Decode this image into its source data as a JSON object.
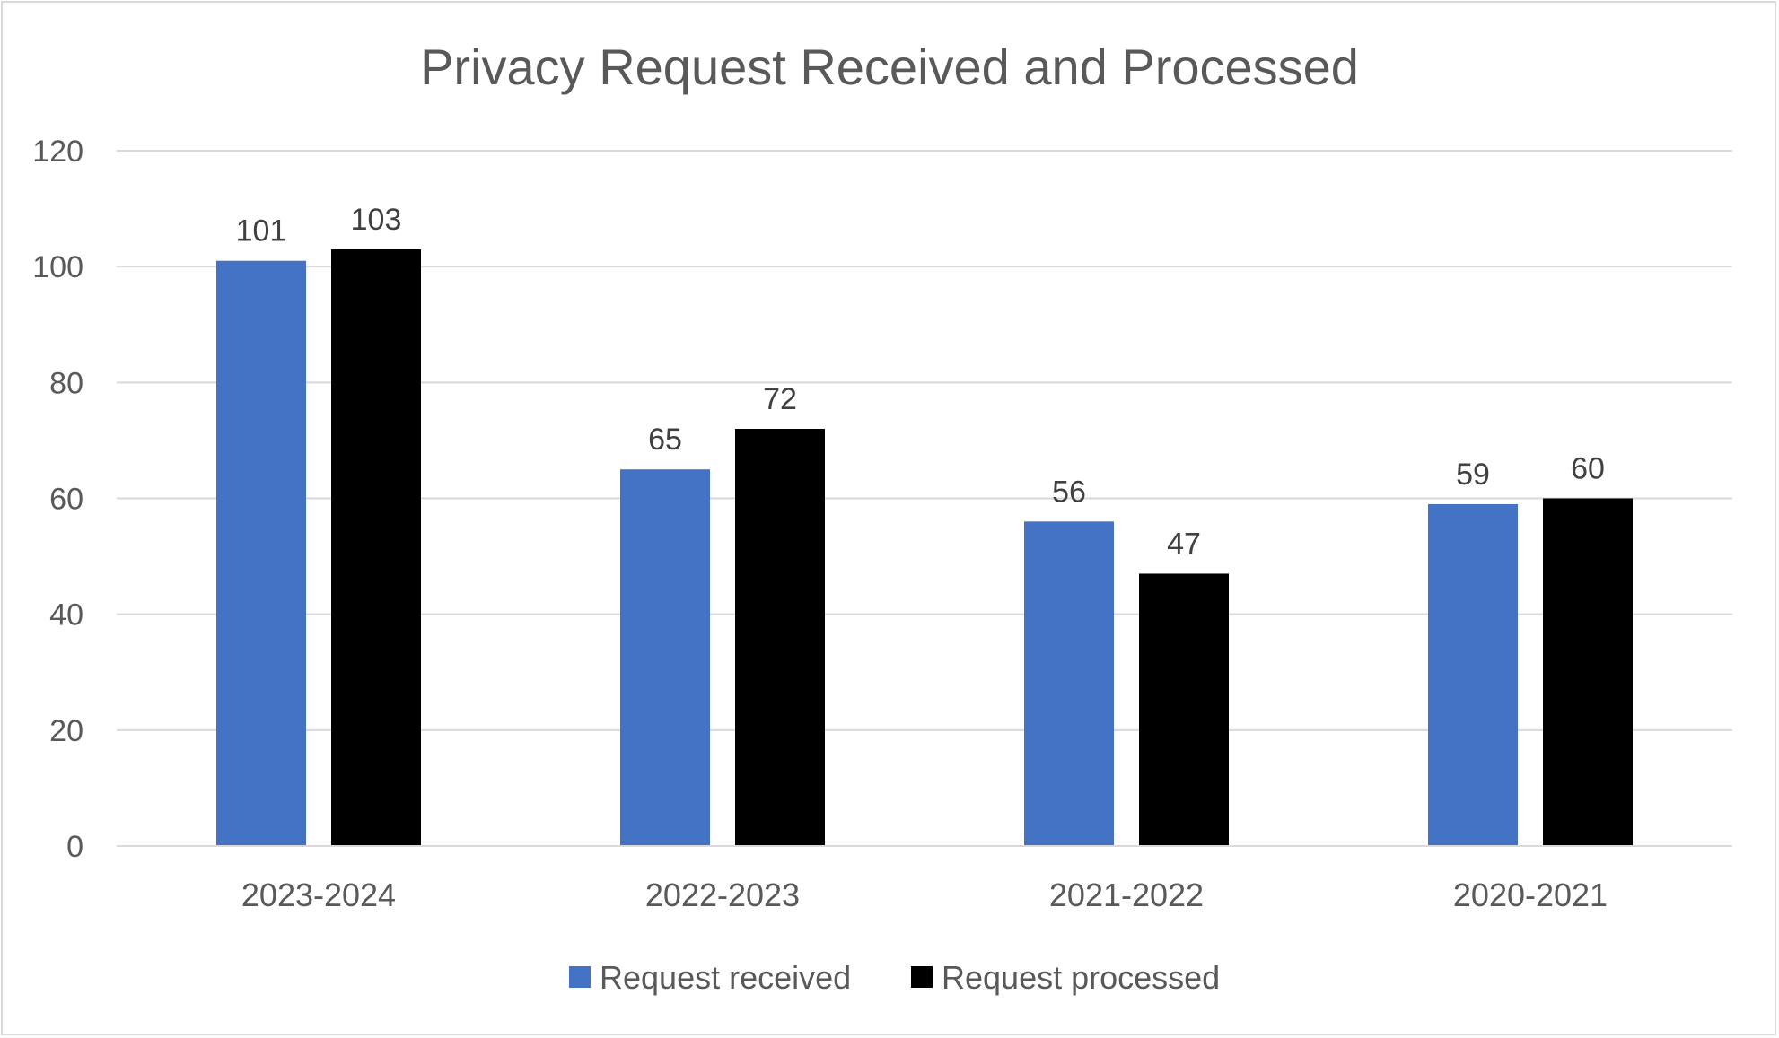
{
  "chart_data": {
    "type": "bar",
    "title": "Privacy Request Received and Processed",
    "xlabel": "",
    "ylabel": "",
    "ylim": [
      0,
      120
    ],
    "yticks": [
      0,
      20,
      40,
      60,
      80,
      100,
      120
    ],
    "grid": true,
    "legend_position": "bottom",
    "categories": [
      "2023-2024",
      "2022-2023",
      "2021-2022",
      "2020-2021"
    ],
    "series": [
      {
        "name": "Request received",
        "color": "#4472C4",
        "values": [
          101,
          65,
          56,
          59
        ]
      },
      {
        "name": "Request processed",
        "color": "#000000",
        "values": [
          103,
          72,
          47,
          60
        ]
      }
    ]
  }
}
